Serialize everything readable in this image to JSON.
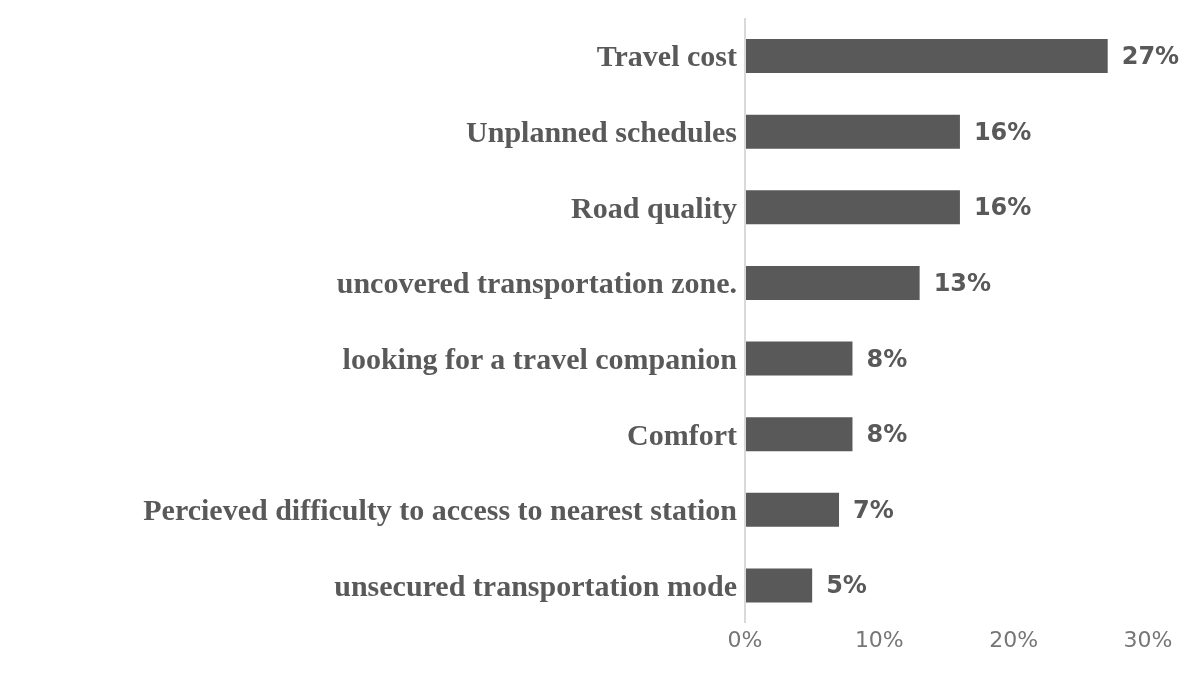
{
  "chart_data": {
    "type": "bar",
    "orientation": "horizontal",
    "categories": [
      "Travel cost",
      "Unplanned schedules",
      "Road quality",
      "uncovered transportation zone.",
      "looking for a travel companion",
      "Comfort",
      "Percieved difficulty to access to nearest station",
      "unsecured transportation mode"
    ],
    "values": [
      27,
      16,
      16,
      13,
      8,
      8,
      7,
      5
    ],
    "value_labels": [
      "27%",
      "16%",
      "16%",
      "13%",
      "8%",
      "8%",
      "7%",
      "5%"
    ],
    "color": "#595959",
    "xlim": [
      0,
      30
    ],
    "xticks": [
      {
        "value": 0,
        "label": "0%"
      },
      {
        "value": 10,
        "label": "10%"
      },
      {
        "value": 20,
        "label": "20%"
      },
      {
        "value": 30,
        "label": "30%"
      }
    ],
    "grid": false,
    "legend": false
  }
}
